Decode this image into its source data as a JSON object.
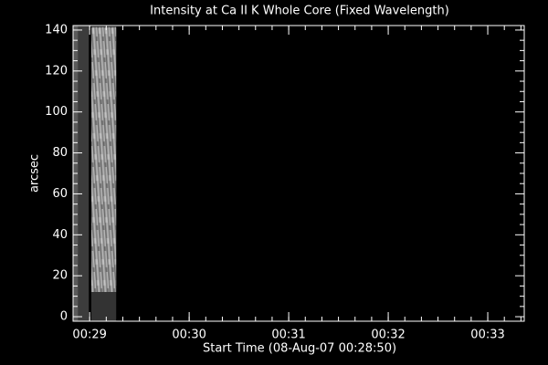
{
  "chart_data": {
    "type": "image",
    "title": "Intensity at Ca II K Whole Core (Fixed Wavelength)",
    "xlabel": "Start Time (08-Aug-07 00:28:50)",
    "ylabel": "arcsec",
    "xlim": [
      0,
      272
    ],
    "ylim": [
      -2.2,
      142.2
    ],
    "xticks": [
      {
        "value": 10,
        "label": "00:29"
      },
      {
        "value": 70,
        "label": "00:30"
      },
      {
        "value": 130,
        "label": "00:31"
      },
      {
        "value": 190,
        "label": "00:32"
      },
      {
        "value": 250,
        "label": "00:33"
      }
    ],
    "yticks": [
      0,
      20,
      40,
      60,
      80,
      100,
      120,
      140
    ],
    "xminor": 6,
    "yminor": 4,
    "background": "#000000",
    "axis_color": "#ffffff",
    "blocks": [
      {
        "x": [
          0,
          3
        ],
        "y": [
          -2.2,
          142.2
        ],
        "color": "#5a5a5a",
        "texture": false
      },
      {
        "x": [
          3,
          9.5
        ],
        "y": [
          -2.2,
          142.2
        ],
        "color": "#3c3c3c",
        "texture": false
      },
      {
        "x": [
          11,
          26
        ],
        "y": [
          12,
          141.5
        ],
        "color": "#a0a0a0",
        "texture": true
      },
      {
        "x": [
          11,
          26
        ],
        "y": [
          -2.2,
          12
        ],
        "color": "#333333",
        "texture": false
      }
    ]
  }
}
